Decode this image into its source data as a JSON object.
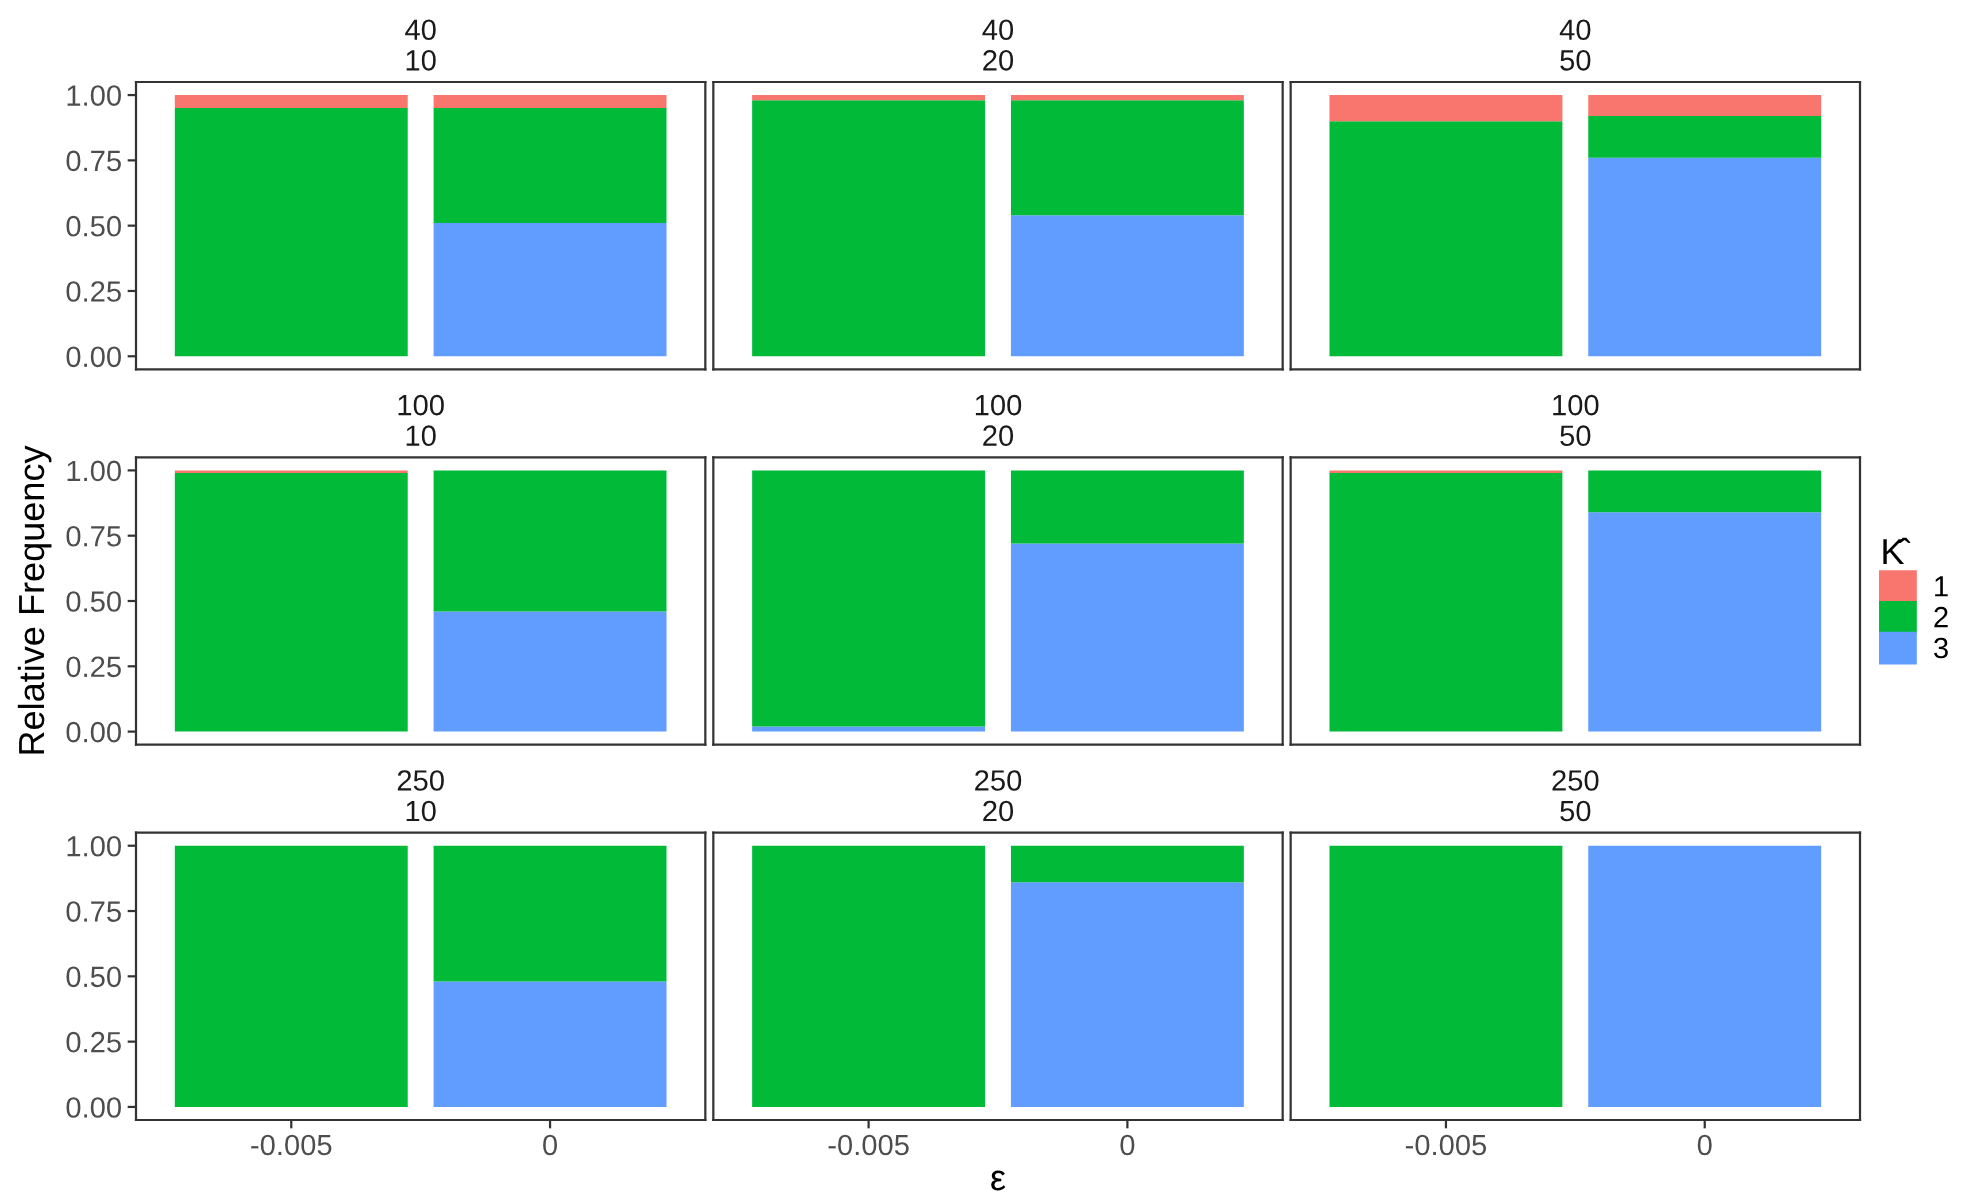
{
  "chart_data": [
    {
      "type": "bar",
      "stacked": true,
      "title": "40",
      "subtitle": "10",
      "categories": [
        "-0.005",
        "0"
      ],
      "ylim": [
        -0.05,
        1.05
      ],
      "yticks": [
        {
          "value": 0,
          "label": "0.00"
        },
        {
          "value": 0.25,
          "label": "0.25"
        },
        {
          "value": 0.5,
          "label": "0.50"
        },
        {
          "value": 0.75,
          "label": "0.75"
        },
        {
          "value": 1,
          "label": "1.00"
        }
      ],
      "tick_labels": "y",
      "grid": false,
      "legend": false,
      "series": [
        {
          "color": "#619cff",
          "values": [
            0,
            0.51
          ]
        },
        {
          "color": "#00ba38",
          "values": [
            0.95,
            0.44
          ]
        },
        {
          "color": "#f8766d",
          "values": [
            0.05,
            0.05
          ]
        }
      ]
    },
    {
      "type": "bar",
      "stacked": true,
      "title": "40",
      "subtitle": "20",
      "categories": [
        "-0.005",
        "0"
      ],
      "ylim": [
        -0.05,
        1.05
      ],
      "tick_labels": false,
      "grid": false,
      "legend": false,
      "series": [
        {
          "color": "#619cff",
          "values": [
            0,
            0.54
          ]
        },
        {
          "color": "#00ba38",
          "values": [
            0.98,
            0.44
          ]
        },
        {
          "color": "#f8766d",
          "values": [
            0.02,
            0.02
          ]
        }
      ]
    },
    {
      "type": "bar",
      "stacked": true,
      "title": "40",
      "subtitle": "50",
      "categories": [
        "-0.005",
        "0"
      ],
      "ylim": [
        -0.05,
        1.05
      ],
      "tick_labels": false,
      "grid": false,
      "legend": false,
      "series": [
        {
          "color": "#619cff",
          "values": [
            0,
            0.76
          ]
        },
        {
          "color": "#00ba38",
          "values": [
            0.9,
            0.16
          ]
        },
        {
          "color": "#f8766d",
          "values": [
            0.1,
            0.08
          ]
        }
      ]
    },
    {
      "type": "bar",
      "stacked": true,
      "title": "100",
      "subtitle": "10",
      "ylabel": "Relative Frequency",
      "categories": [
        "-0.005",
        "0"
      ],
      "ylim": [
        -0.05,
        1.05
      ],
      "yticks": [
        {
          "value": 0,
          "label": "0.00"
        },
        {
          "value": 0.25,
          "label": "0.25"
        },
        {
          "value": 0.5,
          "label": "0.50"
        },
        {
          "value": 0.75,
          "label": "0.75"
        },
        {
          "value": 1,
          "label": "1.00"
        }
      ],
      "tick_labels": "y",
      "grid": false,
      "legend": false,
      "series": [
        {
          "color": "#619cff",
          "values": [
            0,
            0.46
          ]
        },
        {
          "color": "#00ba38",
          "values": [
            0.99,
            0.54
          ]
        },
        {
          "color": "#f8766d",
          "values": [
            0.01,
            0
          ]
        }
      ]
    },
    {
      "type": "bar",
      "stacked": true,
      "title": "100",
      "subtitle": "20",
      "categories": [
        "-0.005",
        "0"
      ],
      "ylim": [
        -0.05,
        1.05
      ],
      "tick_labels": false,
      "grid": false,
      "legend": false,
      "series": [
        {
          "color": "#619cff",
          "values": [
            0.02,
            0.72
          ]
        },
        {
          "color": "#00ba38",
          "values": [
            0.98,
            0.28
          ]
        },
        {
          "color": "#f8766d",
          "values": [
            0,
            0
          ]
        }
      ]
    },
    {
      "type": "bar",
      "stacked": true,
      "title": "100",
      "subtitle": "50",
      "legend_title": "K̂",
      "categories": [
        "-0.005",
        "0"
      ],
      "ylim": [
        -0.05,
        1.05
      ],
      "tick_labels": false,
      "grid": false,
      "legend": "right",
      "series": [
        {
          "name": "3",
          "color": "#619cff",
          "values": [
            0,
            0.84
          ]
        },
        {
          "name": "2",
          "color": "#00ba38",
          "values": [
            0.99,
            0.16
          ]
        },
        {
          "name": "1",
          "color": "#f8766d",
          "values": [
            0.01,
            0
          ]
        }
      ]
    },
    {
      "type": "bar",
      "stacked": true,
      "title": "250",
      "subtitle": "10",
      "categories": [
        "-0.005",
        "0"
      ],
      "ylim": [
        -0.05,
        1.05
      ],
      "yticks": [
        {
          "value": 0,
          "label": "0.00"
        },
        {
          "value": 0.25,
          "label": "0.25"
        },
        {
          "value": 0.5,
          "label": "0.50"
        },
        {
          "value": 0.75,
          "label": "0.75"
        },
        {
          "value": 1,
          "label": "1.00"
        }
      ],
      "grid": false,
      "legend": false,
      "series": [
        {
          "color": "#619cff",
          "values": [
            0,
            0.48
          ]
        },
        {
          "color": "#00ba38",
          "values": [
            1,
            0.52
          ]
        },
        {
          "color": "#f8766d",
          "values": [
            0,
            0
          ]
        }
      ]
    },
    {
      "type": "bar",
      "stacked": true,
      "title": "250",
      "subtitle": "20",
      "xlabel": "ε",
      "categories": [
        "-0.005",
        "0"
      ],
      "ylim": [
        -0.05,
        1.05
      ],
      "tick_labels": "x",
      "grid": false,
      "legend": false,
      "series": [
        {
          "color": "#619cff",
          "values": [
            0,
            0.86
          ]
        },
        {
          "color": "#00ba38",
          "values": [
            1,
            0.14
          ]
        },
        {
          "color": "#f8766d",
          "values": [
            0,
            0
          ]
        }
      ]
    },
    {
      "type": "bar",
      "stacked": true,
      "title": "250",
      "subtitle": "50",
      "categories": [
        "-0.005",
        "0"
      ],
      "ylim": [
        -0.05,
        1.05
      ],
      "tick_labels": "x",
      "grid": false,
      "legend": false,
      "series": [
        {
          "color": "#619cff",
          "values": [
            0,
            1
          ]
        },
        {
          "color": "#00ba38",
          "values": [
            1,
            0
          ]
        },
        {
          "color": "#f8766d",
          "values": [
            0,
            0
          ]
        }
      ]
    }
  ]
}
